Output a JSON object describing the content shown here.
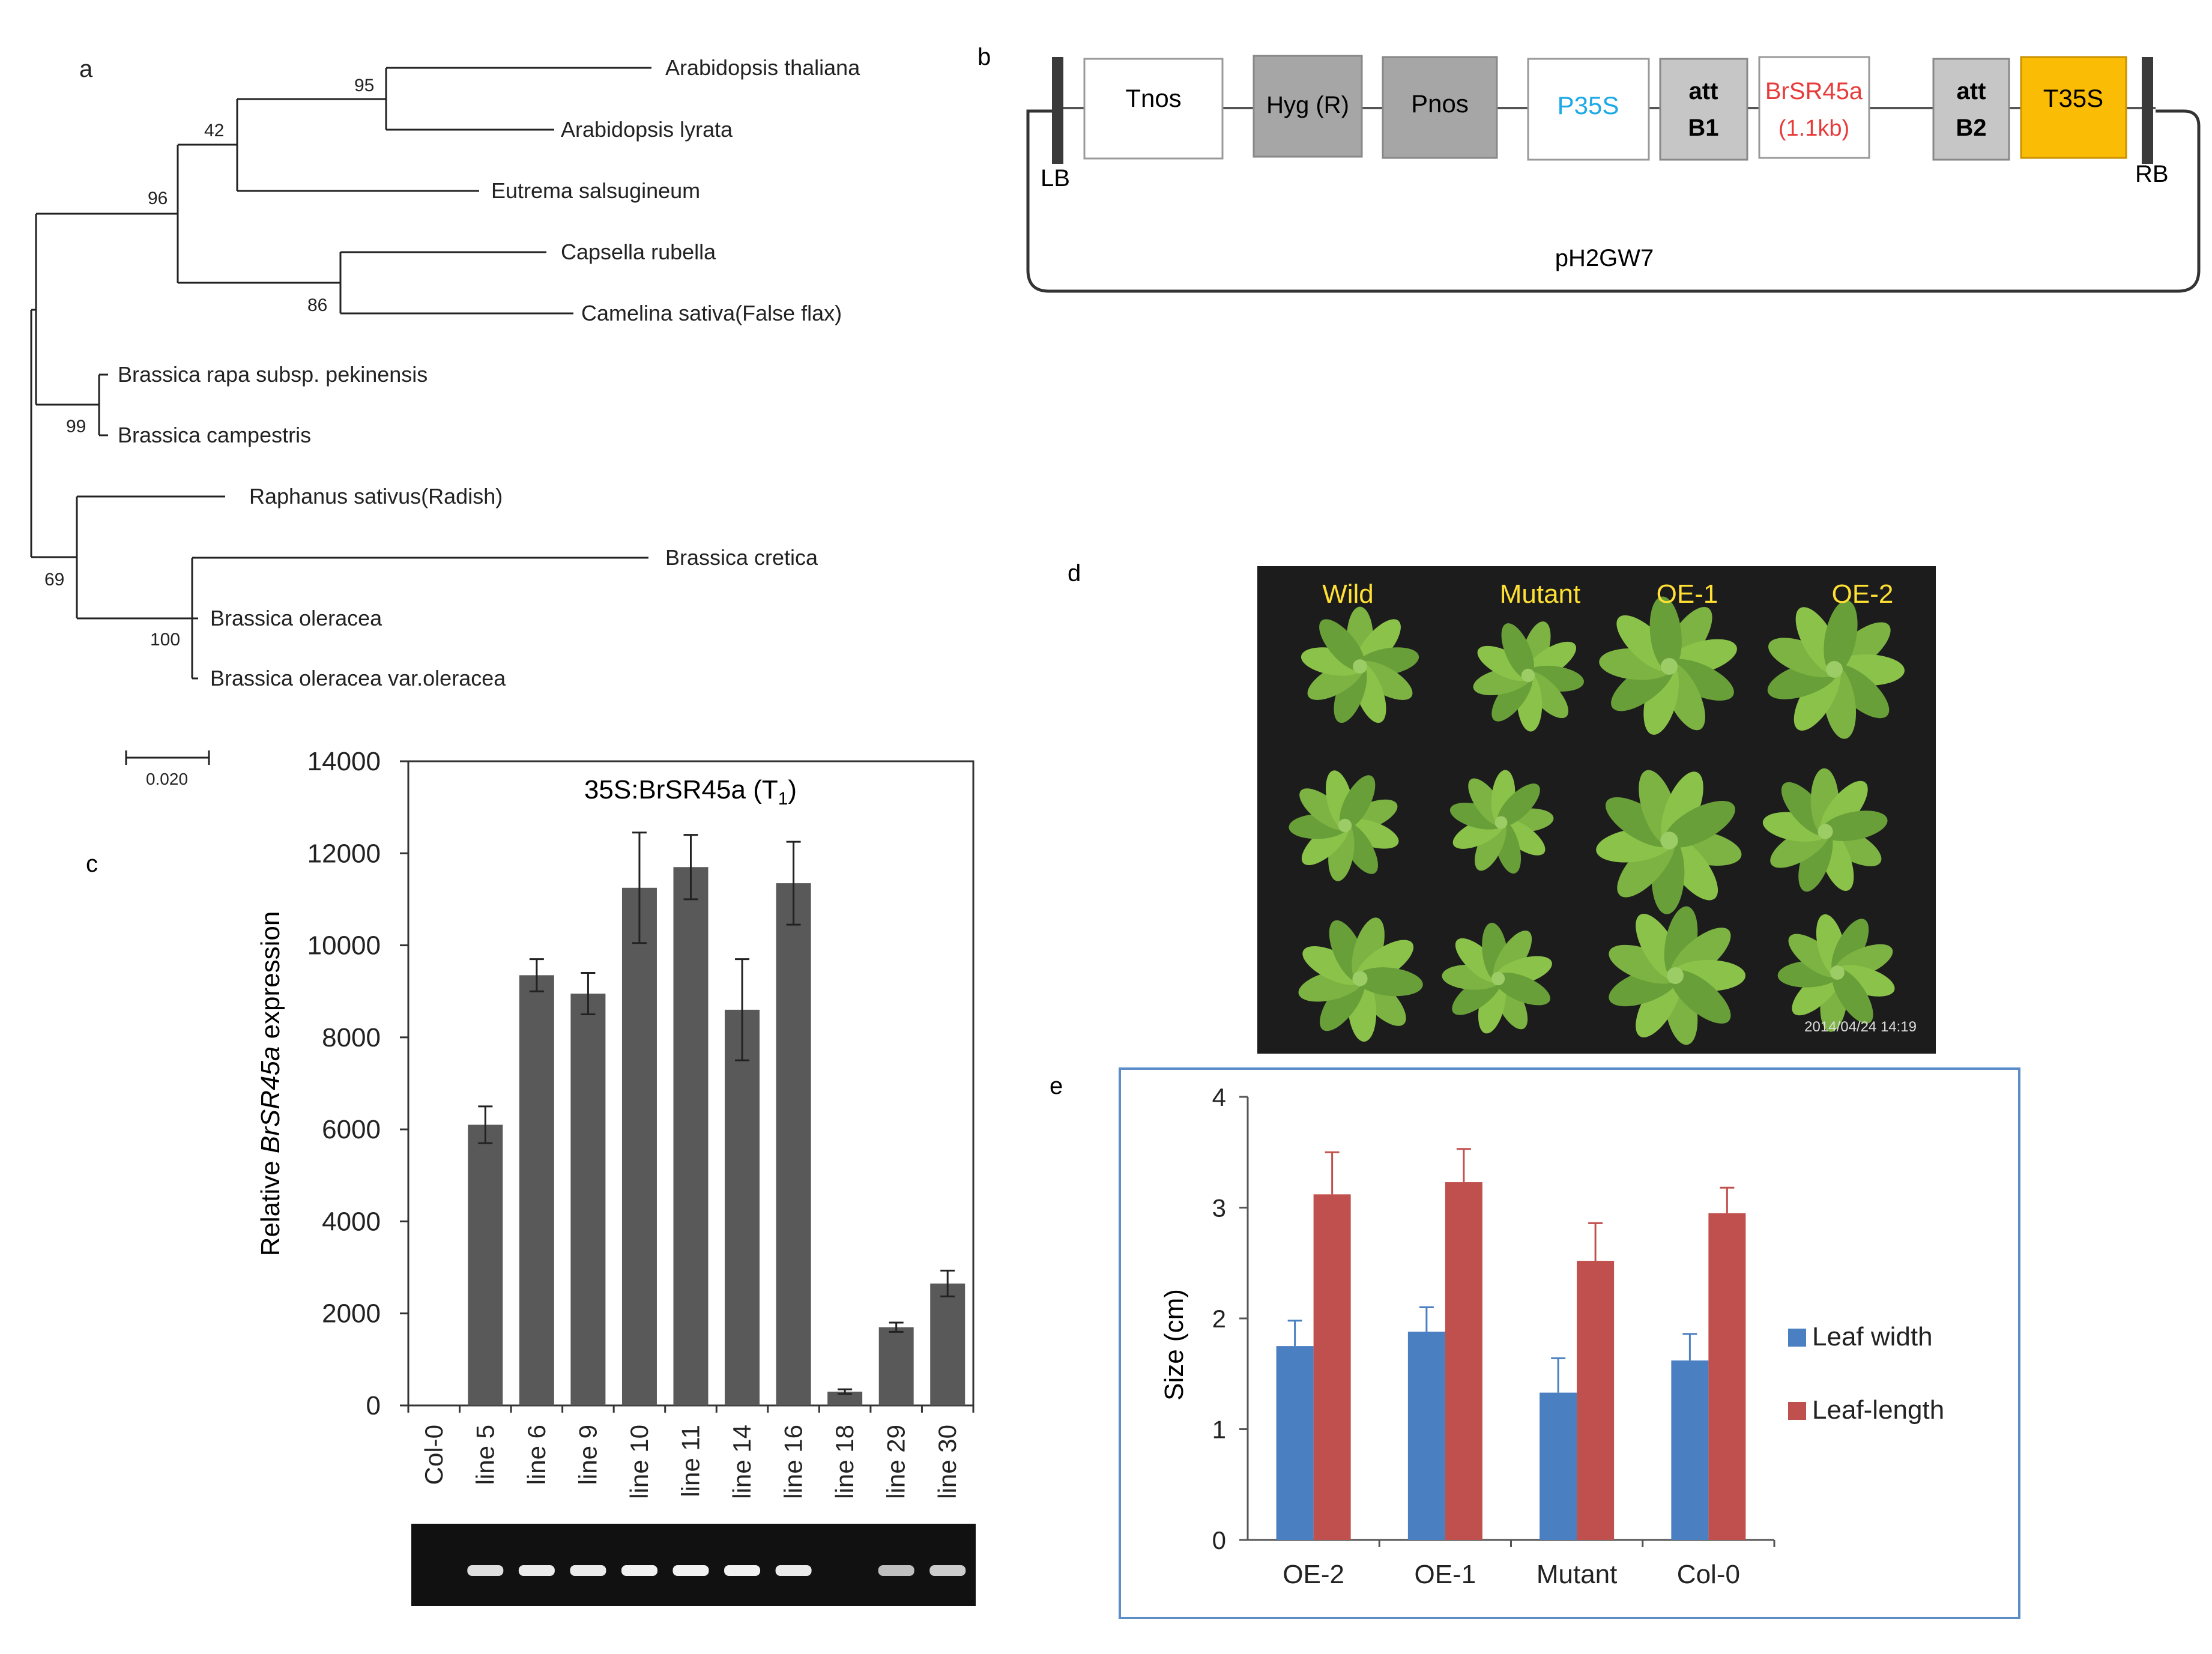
{
  "panels": {
    "a": {
      "letter": "a",
      "taxa": [
        "Arabidopsis thaliana",
        "Arabidopsis lyrata",
        "Eutrema salsugineum",
        "Capsella rubella",
        "Camelina sativa(False flax)",
        "Brassica rapa subsp. pekinensis",
        "Brassica campestris",
        "Raphanus sativus(Radish)",
        "Brassica cretica",
        "Brassica oleracea",
        "Brassica oleracea var.oleracea"
      ],
      "bootstrap": [
        "95",
        "42",
        "96",
        "86",
        "99",
        "69",
        "100"
      ],
      "scale_label": "0.020"
    },
    "b": {
      "letter": "b",
      "blocks": {
        "tnos": "Tnos",
        "hyg": "Hyg (R)",
        "pnos": "Pnos",
        "p35s": "P35S",
        "attb1_line1": "att",
        "attb1_line2": "B1",
        "gene_line1": "BrSR45a",
        "gene_line2": "(1.1kb)",
        "attb2_line1": "att",
        "attb2_line2": "B2",
        "t35s": "T35S"
      },
      "lb": "LB",
      "rb": "RB",
      "vector": "pH2GW7",
      "colors": {
        "p35s_text": "#1ca9e6",
        "gene_text": "#e83a3a",
        "t35s_fill": "#fbbc05",
        "gray_fill": "#a6a6a6",
        "light_gray_fill": "#c6c6c6"
      }
    },
    "c": {
      "letter": "c",
      "chart_data": {
        "type": "bar",
        "title": "35S:BrSR45a (T",
        "title_subscript": "1",
        "title_suffix": ")",
        "ylabel_pre": "Relative ",
        "ylabel_gene": "BrSR45a",
        "ylabel_post": " expression",
        "ylim": [
          0,
          14000
        ],
        "yticks": [
          "0",
          "2000",
          "4000",
          "6000",
          "8000",
          "10000",
          "12000",
          "14000"
        ],
        "categories": [
          "Col-0",
          "line 5",
          "line 6",
          "line 9",
          "line 10",
          "line 11",
          "line 14",
          "line 16",
          "line 18",
          "line 29",
          "line 30"
        ],
        "values": [
          0,
          6100,
          9350,
          8950,
          11250,
          11700,
          8600,
          11350,
          300,
          1700,
          2650
        ],
        "errors": [
          0,
          400,
          350,
          450,
          1200,
          700,
          1100,
          900,
          50,
          100,
          280
        ],
        "gel_band_intensity": [
          0,
          0.85,
          0.95,
          0.95,
          1.0,
          1.0,
          1.0,
          0.95,
          0,
          0.6,
          0.7
        ],
        "bar_color": "#595959"
      }
    },
    "d": {
      "letter": "d",
      "labels": [
        "Wild",
        "Mutant",
        "OE-1",
        "OE-2"
      ],
      "timestamp": "2014/04/24  14:19",
      "label_color": "#ffe033"
    },
    "e": {
      "letter": "e",
      "chart_data": {
        "type": "bar",
        "ylabel": "Size (cm)",
        "ylim": [
          0,
          4
        ],
        "yticks": [
          "0",
          "1",
          "2",
          "3",
          "4"
        ],
        "categories": [
          "OE-2",
          "OE-1",
          "Mutant",
          "Col-0"
        ],
        "series": [
          {
            "name": "Leaf width",
            "values": [
              1.75,
              1.88,
              1.33,
              1.62
            ],
            "errors": [
              0.23,
              0.22,
              0.31,
              0.24
            ],
            "color": "#4a7fc1"
          },
          {
            "name": "Leaf-length",
            "values": [
              3.12,
              3.23,
              2.52,
              2.95
            ],
            "errors": [
              0.38,
              0.3,
              0.34,
              0.23
            ],
            "color": "#c0504d"
          }
        ],
        "legend": "right"
      }
    }
  }
}
